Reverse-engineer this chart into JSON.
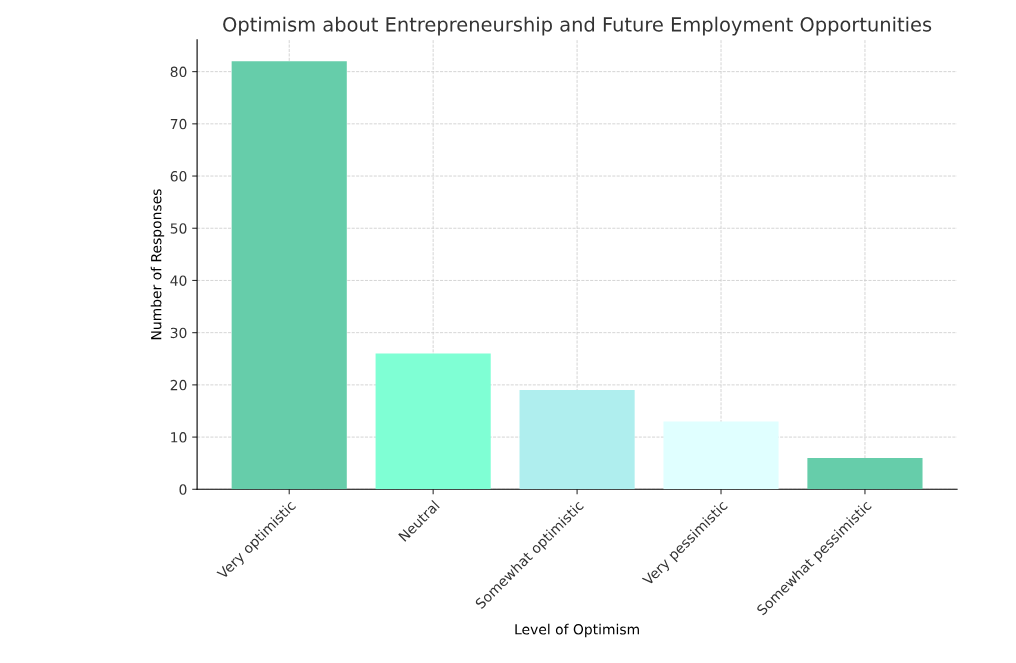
{
  "chart_data": {
    "type": "bar",
    "title": "Optimism about Entrepreneurship and Future Employment Opportunities",
    "xlabel": "Level of Optimism",
    "ylabel": "Number of Responses",
    "categories": [
      "Very optimistic",
      "Neutral",
      "Somewhat optimistic",
      "Very pessimistic",
      "Somewhat pessimistic"
    ],
    "values": [
      82,
      26,
      19,
      13,
      6
    ],
    "colors": [
      "#66cdaa",
      "#7fffd4",
      "#afeeee",
      "#e0ffff",
      "#66cdaa"
    ],
    "ylim": [
      0,
      86.1
    ],
    "yticks": [
      0,
      10,
      20,
      30,
      40,
      50,
      60,
      70,
      80
    ],
    "grid": true
  }
}
